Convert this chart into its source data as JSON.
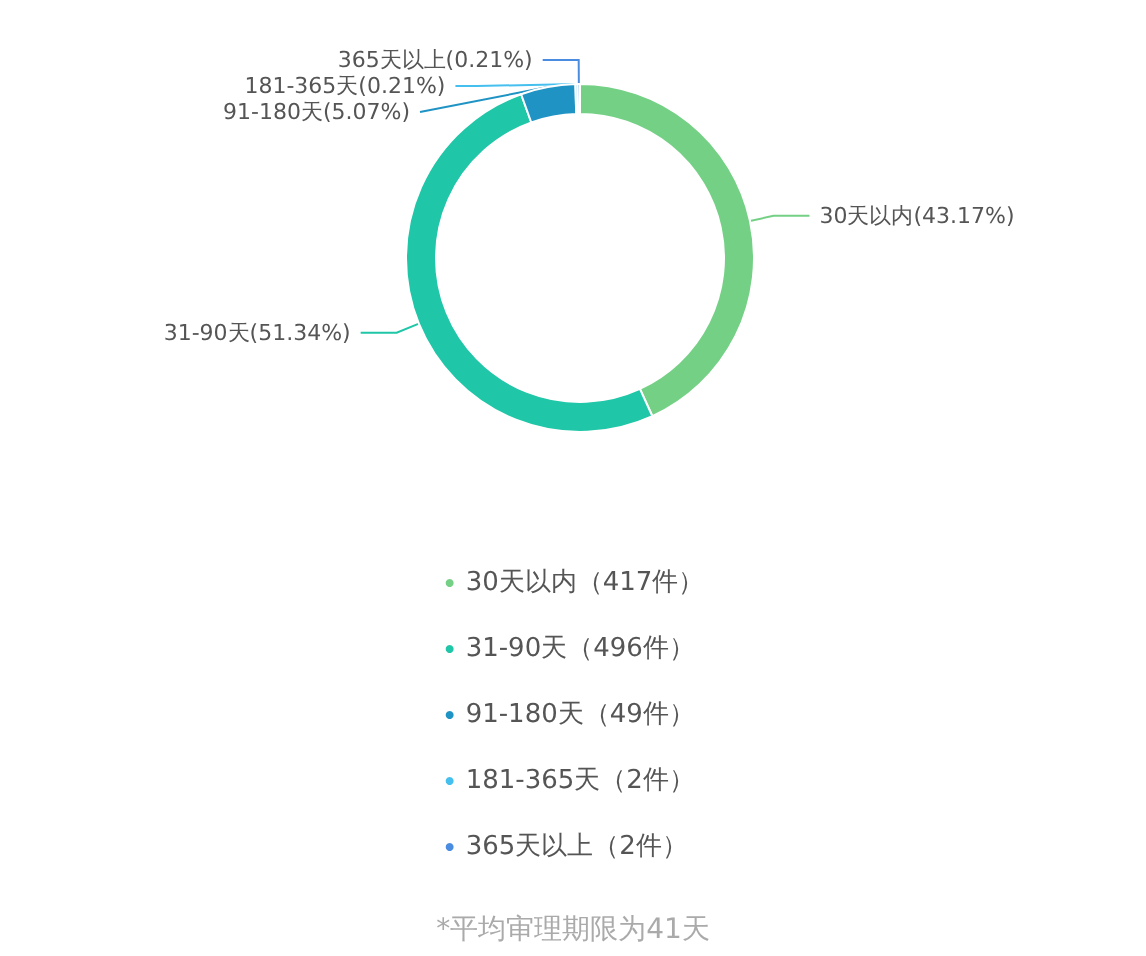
{
  "chart_data": {
    "type": "donut",
    "categories": [
      "30天以内（417件）",
      "31-90天（496件）",
      "91-180天（49件）",
      "181-365天（2件）",
      "365天以上（2件）"
    ],
    "values": [
      43.17,
      51.34,
      5.07,
      0.21,
      0.21
    ],
    "colors": [
      "#74d085",
      "#1fc6a7",
      "#1e93c4",
      "#45c0ee",
      "#4a8ce0"
    ],
    "value_labels": [
      "30天以内(43.17%)",
      "31-90天(51.34%)",
      "91-180天(5.07%)",
      "181-365天(0.21%)",
      "365天以上(0.21%)"
    ],
    "legend": "bottom",
    "annotations": [
      "*平均审理期限为41天"
    ]
  }
}
